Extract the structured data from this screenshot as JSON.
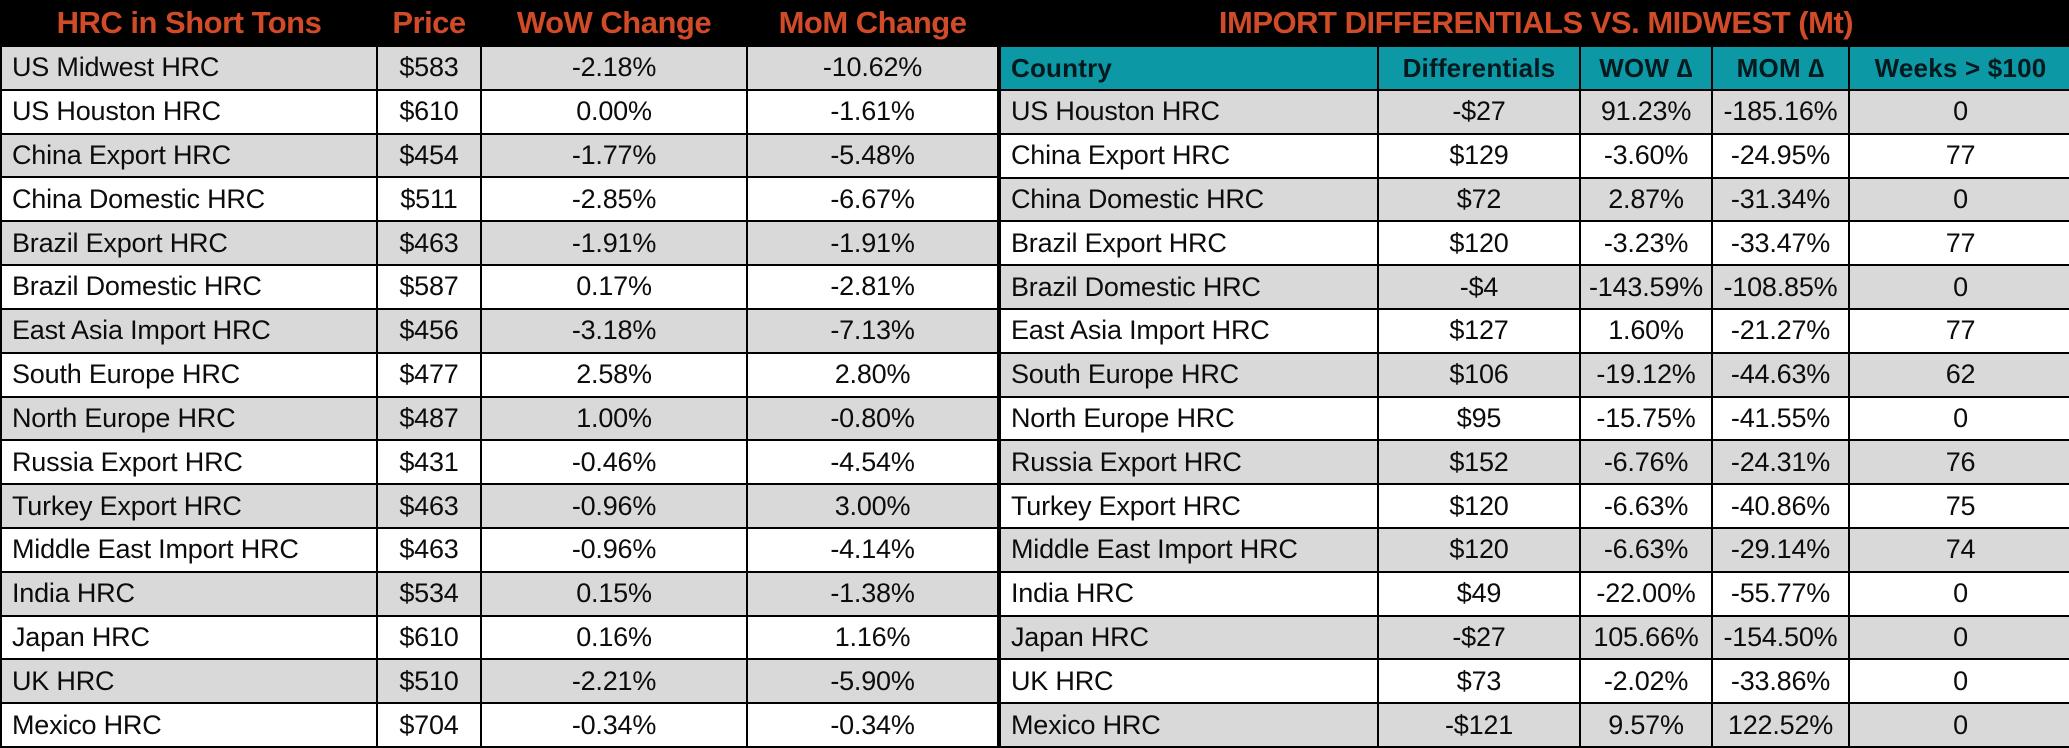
{
  "colors": {
    "accent_orange": "#d14b28",
    "teal": "#0d98a6",
    "row_gray": "#d9d9d9",
    "row_white": "#ffffff",
    "header_black": "#000000"
  },
  "chart_data": [
    {
      "type": "table",
      "title": "HRC in Short Tons",
      "columns": [
        "HRC in Short Tons",
        "Price",
        "WoW Change",
        "MoM Change"
      ],
      "rows": [
        [
          "US Midwest HRC",
          "$583",
          "-2.18%",
          "-10.62%"
        ],
        [
          "US Houston HRC",
          "$610",
          "0.00%",
          "-1.61%"
        ],
        [
          "China Export HRC",
          "$454",
          "-1.77%",
          "-5.48%"
        ],
        [
          "China Domestic HRC",
          "$511",
          "-2.85%",
          "-6.67%"
        ],
        [
          "Brazil Export HRC",
          "$463",
          "-1.91%",
          "-1.91%"
        ],
        [
          "Brazil Domestic HRC",
          "$587",
          "0.17%",
          "-2.81%"
        ],
        [
          "East Asia Import HRC",
          "$456",
          "-3.18%",
          "-7.13%"
        ],
        [
          "South Europe HRC",
          "$477",
          "2.58%",
          "2.80%"
        ],
        [
          "North Europe HRC",
          "$487",
          "1.00%",
          "-0.80%"
        ],
        [
          "Russia Export HRC",
          "$431",
          "-0.46%",
          "-4.54%"
        ],
        [
          "Turkey Export HRC",
          "$463",
          "-0.96%",
          "3.00%"
        ],
        [
          "Middle East Import HRC",
          "$463",
          "-0.96%",
          "-4.14%"
        ],
        [
          "India HRC",
          "$534",
          "0.15%",
          "-1.38%"
        ],
        [
          "Japan HRC",
          "$610",
          "0.16%",
          "1.16%"
        ],
        [
          "UK HRC",
          "$510",
          "-2.21%",
          "-5.90%"
        ],
        [
          "Mexico HRC",
          "$704",
          "-0.34%",
          "-0.34%"
        ]
      ]
    },
    {
      "type": "table",
      "title": "IMPORT DIFFERENTIALS VS. MIDWEST (Mt)",
      "columns": [
        "Country",
        "Differentials",
        "WOW ∆",
        "MOM ∆",
        "Weeks > $100"
      ],
      "rows": [
        [
          "US Houston HRC",
          "-$27",
          "91.23%",
          "-185.16%",
          "0"
        ],
        [
          "China Export HRC",
          "$129",
          "-3.60%",
          "-24.95%",
          "77"
        ],
        [
          "China Domestic HRC",
          "$72",
          "2.87%",
          "-31.34%",
          "0"
        ],
        [
          "Brazil Export HRC",
          "$120",
          "-3.23%",
          "-33.47%",
          "77"
        ],
        [
          "Brazil Domestic HRC",
          "-$4",
          "-143.59%",
          "-108.85%",
          "0"
        ],
        [
          "East Asia Import HRC",
          "$127",
          "1.60%",
          "-21.27%",
          "77"
        ],
        [
          "South Europe HRC",
          "$106",
          "-19.12%",
          "-44.63%",
          "62"
        ],
        [
          "North Europe HRC",
          "$95",
          "-15.75%",
          "-41.55%",
          "0"
        ],
        [
          "Russia Export HRC",
          "$152",
          "-6.76%",
          "-24.31%",
          "76"
        ],
        [
          "Turkey Export HRC",
          "$120",
          "-6.63%",
          "-40.86%",
          "75"
        ],
        [
          "Middle East Import HRC",
          "$120",
          "-6.63%",
          "-29.14%",
          "74"
        ],
        [
          "India HRC",
          "$49",
          "-22.00%",
          "-55.77%",
          "0"
        ],
        [
          "Japan HRC",
          "-$27",
          "105.66%",
          "-154.50%",
          "0"
        ],
        [
          "UK HRC",
          "$73",
          "-2.02%",
          "-33.86%",
          "0"
        ],
        [
          "Mexico HRC",
          "-$121",
          "9.57%",
          "122.52%",
          "0"
        ]
      ]
    }
  ]
}
